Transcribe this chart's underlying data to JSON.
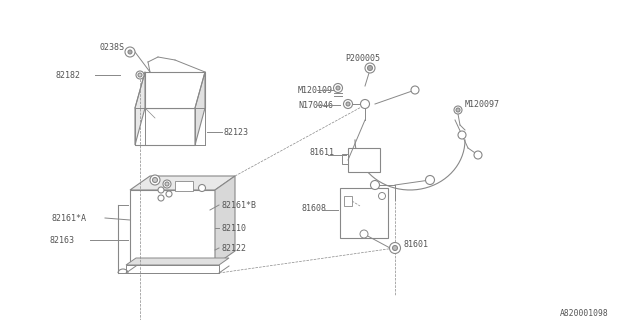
{
  "bg_color": "#ffffff",
  "line_color": "#888888",
  "text_color": "#555555",
  "watermark": "A820001098",
  "cover_label": "82123",
  "hold_down_label": "82182",
  "bolt_top_label": "0238S",
  "battery_label": "82110",
  "frame_label": "82122",
  "clamp_label": "82163",
  "cable_a_label": "82161*A",
  "cable_b_label": "82161*B",
  "cable_assy_label": "81601",
  "fuse_box_label": "81608",
  "fuse_label": "81611",
  "bolt1_label": "M120109",
  "nut_label": "N170046",
  "bolt2_label": "M120097",
  "pipe_label": "P200005"
}
